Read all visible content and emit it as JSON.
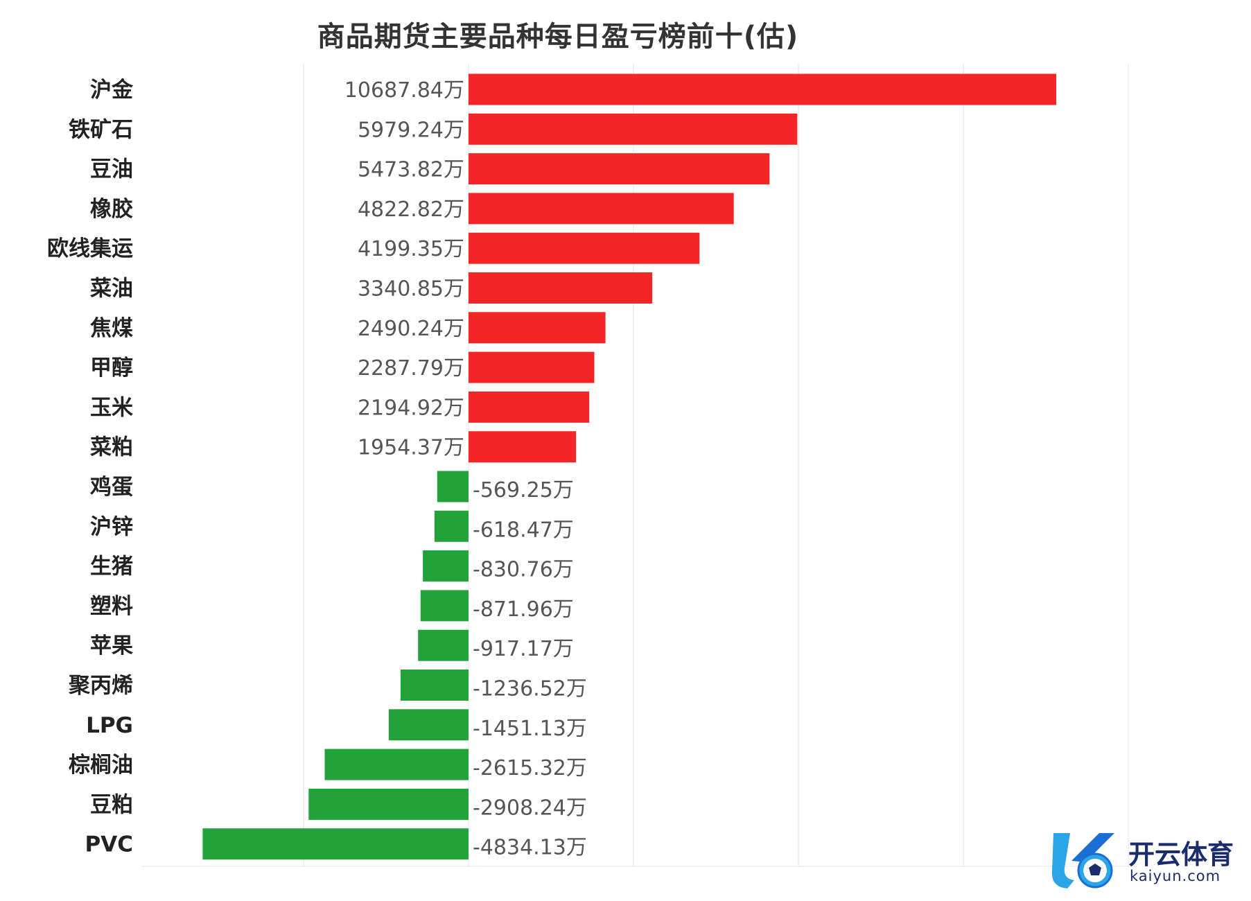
{
  "chart_data": {
    "type": "bar",
    "orientation": "horizontal",
    "title": "商品期货主要品种每日盈亏榜前十(估)",
    "value_suffix": "万",
    "categories": [
      "沪金",
      "铁矿石",
      "豆油",
      "橡胶",
      "欧线集运",
      "菜油",
      "焦煤",
      "甲醇",
      "玉米",
      "菜粕",
      "鸡蛋",
      "沪锌",
      "生猪",
      "塑料",
      "苹果",
      "聚丙烯",
      "LPG",
      "棕榈油",
      "豆粕",
      "PVC"
    ],
    "values": [
      10687.84,
      5979.24,
      5473.82,
      4822.82,
      4199.35,
      3340.85,
      2490.24,
      2287.79,
      2194.92,
      1954.37,
      -569.25,
      -618.47,
      -830.76,
      -871.96,
      -917.17,
      -1236.52,
      -1451.13,
      -2615.32,
      -2908.24,
      -4834.13
    ],
    "xlim": [
      -6000,
      12000
    ],
    "grid": true,
    "legend": "none",
    "colors": {
      "positive": "#f42526",
      "negative": "#21a33a",
      "grid": "#e6e6e6"
    }
  },
  "watermark": {
    "name": "开云体育",
    "domain": "kaiyun.com",
    "colors": {
      "primary": "#1a2c6b",
      "accent": "#2aa6e8"
    }
  }
}
